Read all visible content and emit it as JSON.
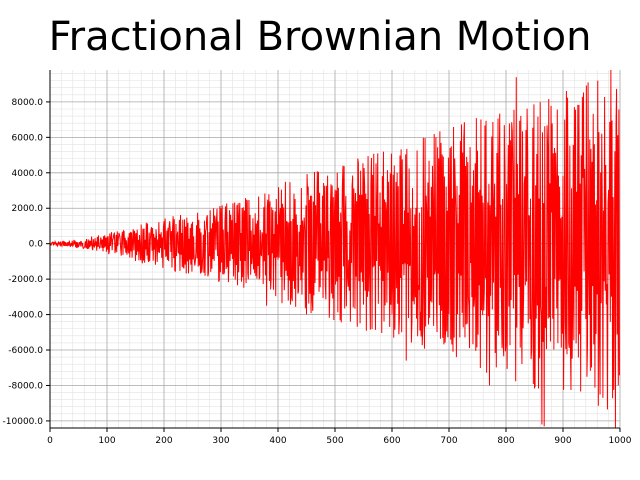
{
  "chart_data": {
    "type": "line",
    "title": "Fractional Brownian Motion",
    "xlabel": "",
    "ylabel": "",
    "xlim": [
      0,
      1000
    ],
    "ylim": [
      -10400,
      9800
    ],
    "x_ticks": [
      "0",
      "100",
      "200",
      "300",
      "400",
      "500",
      "600",
      "700",
      "800",
      "900",
      "1000"
    ],
    "y_ticks": [
      "8000.0",
      "6000.0",
      "4000.0",
      "2000.0",
      "0.0",
      "-2000.0",
      "-4000.0",
      "-6000.0",
      "-8000.0",
      "-10000.0"
    ],
    "x_tick_values": [
      0,
      100,
      200,
      300,
      400,
      500,
      600,
      700,
      800,
      900,
      1000
    ],
    "y_tick_values": [
      8000,
      6000,
      4000,
      2000,
      0,
      -2000,
      -4000,
      -6000,
      -8000,
      -10000
    ],
    "grid": true,
    "minor_grid": true,
    "legend": "none",
    "series": [
      {
        "color": "#ff0000",
        "n_points": 1000,
        "envelope_x": [
          0,
          50,
          100,
          150,
          200,
          250,
          300,
          350,
          400,
          450,
          500,
          550,
          600,
          650,
          700,
          750,
          800,
          850,
          900,
          950,
          1000
        ],
        "envelope_y": [
          100,
          250,
          600,
          1000,
          1500,
          1800,
          2200,
          2700,
          3400,
          4000,
          4600,
          5000,
          5600,
          6000,
          6500,
          7200,
          7800,
          8300,
          8700,
          9200,
          9600
        ],
        "notable_peaks": [
          {
            "x": 818,
            "y": 9400
          },
          {
            "x": 984,
            "y": 9800
          },
          {
            "x": 944,
            "y": 9100
          },
          {
            "x": 863,
            "y": -10200
          },
          {
            "x": 992,
            "y": -10400
          },
          {
            "x": 867,
            "y": -10300
          },
          {
            "x": 380,
            "y": -3500
          },
          {
            "x": 527,
            "y": -4400
          },
          {
            "x": 625,
            "y": -6600
          },
          {
            "x": 771,
            "y": -8000
          }
        ]
      }
    ],
    "colors": {
      "line": "#ff0000",
      "major_grid": "#a8a8a8",
      "minor_grid": "#e2e2e2",
      "axis": "#000000"
    }
  }
}
